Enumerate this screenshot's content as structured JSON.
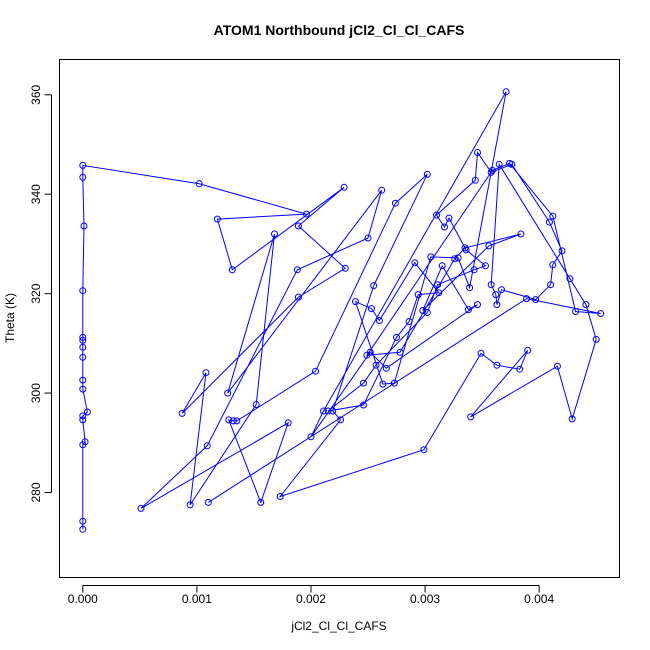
{
  "chart_data": {
    "type": "line",
    "title": "ATOM1 Northbound jCl2_Cl_Cl_CAFS",
    "xlabel": "jCl2_Cl_Cl_CAFS",
    "ylabel": "Theta (K)",
    "xlim": [
      -0.0002,
      0.0047
    ],
    "ylim": [
      263,
      367
    ],
    "xticks": [
      0.0,
      0.001,
      0.002,
      0.003,
      0.004
    ],
    "xtick_labels": [
      "0.000",
      "0.001",
      "0.002",
      "0.003",
      "0.004"
    ],
    "yticks": [
      280,
      300,
      320,
      340,
      360
    ],
    "ytick_labels": [
      "280",
      "300",
      "320",
      "340",
      "360"
    ],
    "grid": false,
    "series": [
      {
        "color": "#0000ff",
        "marker": "open-circle",
        "points": [
          [
            0.0,
            272.6
          ],
          [
            0.0,
            274.2
          ],
          [
            0.0,
            289.6
          ],
          [
            2e-05,
            290.2
          ],
          [
            0.0,
            294.6
          ],
          [
            0.0,
            295.4
          ],
          [
            4e-05,
            296.2
          ],
          [
            0.0,
            300.8
          ],
          [
            0.0,
            302.6
          ],
          [
            0.0,
            307.2
          ],
          [
            0.0,
            309.2
          ],
          [
            0.0,
            310.6
          ],
          [
            0.0,
            311.2
          ],
          [
            0.0,
            320.6
          ],
          [
            1e-05,
            333.6
          ],
          [
            0.0,
            343.4
          ],
          [
            0.0,
            345.8
          ],
          [
            0.00102,
            342.1
          ],
          [
            0.00196,
            336.0
          ],
          [
            0.00118,
            335.0
          ],
          [
            0.00131,
            324.8
          ],
          [
            0.00229,
            341.4
          ],
          [
            0.00189,
            333.6
          ],
          [
            0.0023,
            325.1
          ],
          [
            0.00189,
            319.3
          ],
          [
            0.00087,
            295.9
          ],
          [
            0.00108,
            304.1
          ],
          [
            0.00094,
            277.5
          ],
          [
            0.00152,
            297.7
          ],
          [
            0.00168,
            332.0
          ],
          [
            0.00127,
            300.0
          ],
          [
            0.00262,
            340.8
          ],
          [
            0.0025,
            331.2
          ],
          [
            0.00188,
            324.8
          ],
          [
            0.00109,
            289.4
          ],
          [
            0.00051,
            276.8
          ],
          [
            0.0018,
            294.0
          ],
          [
            0.00156,
            278.0
          ],
          [
            0.00128,
            294.6
          ],
          [
            0.00132,
            294.4
          ],
          [
            0.00135,
            294.4
          ],
          [
            0.00204,
            304.4
          ],
          [
            0.00274,
            338.2
          ],
          [
            0.00302,
            344.0
          ],
          [
            0.00255,
            321.6
          ],
          [
            0.00219,
            296.4
          ],
          [
            0.00226,
            294.6
          ],
          [
            0.00173,
            279.2
          ],
          [
            0.00299,
            288.6
          ],
          [
            0.00349,
            308.0
          ],
          [
            0.00363,
            305.6
          ],
          [
            0.00383,
            304.8
          ],
          [
            0.0039,
            308.6
          ],
          [
            0.0034,
            295.2
          ],
          [
            0.00416,
            305.4
          ],
          [
            0.00429,
            294.8
          ],
          [
            0.0045,
            310.8
          ],
          [
            0.00441,
            317.8
          ],
          [
            0.00427,
            323.0
          ],
          [
            0.00365,
            346.0
          ],
          [
            0.00358,
            321.8
          ],
          [
            0.00362,
            319.8
          ],
          [
            0.00363,
            317.8
          ],
          [
            0.00367,
            320.8
          ],
          [
            0.00397,
            318.8
          ],
          [
            0.0041,
            321.8
          ],
          [
            0.00412,
            325.8
          ],
          [
            0.0042,
            328.6
          ],
          [
            0.00409,
            334.4
          ],
          [
            0.00376,
            346.0
          ],
          [
            0.00358,
            344.4
          ],
          [
            0.00346,
            348.4
          ],
          [
            0.00344,
            342.8
          ],
          [
            0.0031,
            335.8
          ],
          [
            0.00317,
            333.4
          ],
          [
            0.00321,
            335.2
          ],
          [
            0.00336,
            328.8
          ],
          [
            0.00353,
            325.6
          ],
          [
            0.00343,
            324.8
          ],
          [
            0.00311,
            321.8
          ],
          [
            0.00302,
            316.2
          ],
          [
            0.00257,
            305.6
          ],
          [
            0.00246,
            302.0
          ],
          [
            0.00215,
            296.4
          ],
          [
            0.00246,
            297.6
          ],
          [
            0.00275,
            311.2
          ],
          [
            0.00286,
            314.4
          ],
          [
            0.00294,
            319.8
          ],
          [
            0.00312,
            320.2
          ],
          [
            0.00291,
            326.2
          ],
          [
            0.0026,
            314.6
          ],
          [
            0.00253,
            317.0
          ],
          [
            0.00239,
            318.4
          ],
          [
            0.00263,
            301.8
          ],
          [
            0.00273,
            302.0
          ],
          [
            0.00305,
            327.4
          ],
          [
            0.00329,
            327.2
          ],
          [
            0.00339,
            321.2
          ],
          [
            0.00371,
            360.6
          ],
          [
            0.00211,
            296.4
          ],
          [
            0.002,
            291.2
          ],
          [
            0.00252,
            308.2
          ],
          [
            0.00266,
            305.0
          ],
          [
            0.00346,
            317.8
          ],
          [
            0.00338,
            316.8
          ],
          [
            0.00315,
            325.6
          ],
          [
            0.00298,
            316.6
          ],
          [
            0.00356,
            329.6
          ],
          [
            0.00384,
            332.0
          ],
          [
            0.00335,
            329.2
          ],
          [
            0.00326,
            327.0
          ],
          [
            0.00278,
            308.2
          ],
          [
            0.00249,
            307.6
          ],
          [
            0.00359,
            344.8
          ],
          [
            0.00374,
            346.2
          ],
          [
            0.00412,
            335.6
          ],
          [
            0.00432,
            316.4
          ],
          [
            0.00454,
            316.0
          ],
          [
            0.00389,
            319.0
          ],
          [
            0.0011,
            278.0
          ]
        ]
      }
    ]
  }
}
